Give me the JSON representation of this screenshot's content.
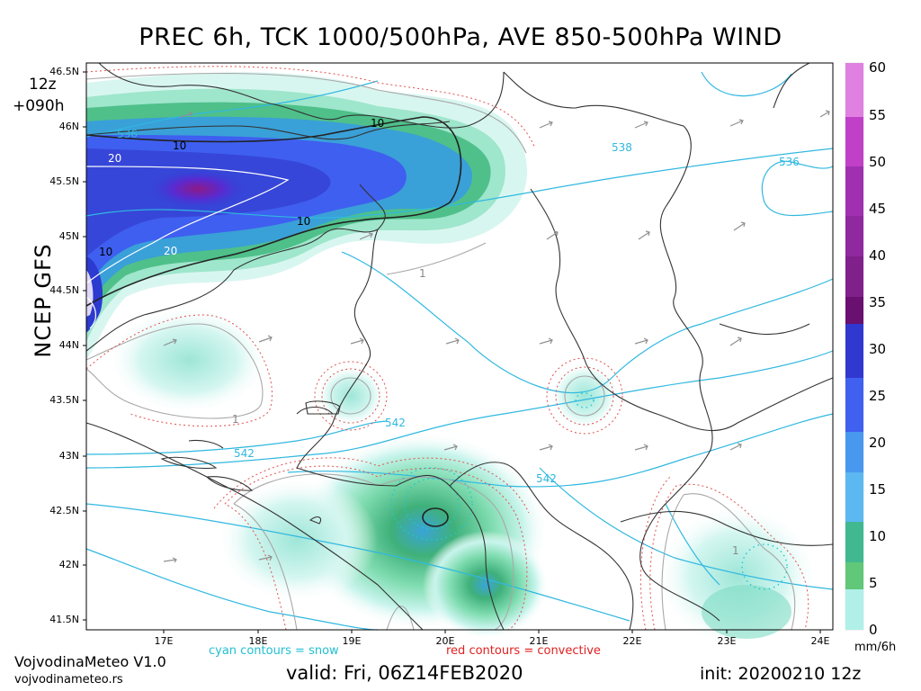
{
  "title": "PREC 6h, TCK 1000/500hPa, AVE 850-500hPa WIND",
  "side_label": "NCEP GFS",
  "run": {
    "hour": "12z",
    "step": "+090h"
  },
  "map": {
    "lat_labels": [
      "46.5N",
      "46N",
      "45.5N",
      "45N",
      "44.5N",
      "44N",
      "43.5N",
      "43N",
      "42.5N",
      "42N",
      "41.5N"
    ],
    "lon_labels": [
      "17E",
      "18E",
      "19E",
      "20E",
      "21E",
      "22E",
      "23E",
      "24E"
    ],
    "contour_labels": {
      "thickness": [
        "536",
        "538",
        "536",
        "542",
        "542",
        "542"
      ],
      "precip": [
        "10",
        "10",
        "10",
        "10",
        "20",
        "20",
        "1",
        "1",
        "1"
      ]
    }
  },
  "colorbar": {
    "ticks": [
      "60",
      "55",
      "50",
      "45",
      "40",
      "35",
      "30",
      "25",
      "20",
      "15",
      "10",
      "5",
      "0"
    ],
    "unit": "mm/6h",
    "colors": [
      "#e080e0",
      "#c040c8",
      "#a030b0",
      "#9028a0",
      "#80208a",
      "#6a1070",
      "#3038d0",
      "#4060f0",
      "#4898f0",
      "#5cb8f0",
      "#40b890",
      "#60c878",
      "#b0f0e8"
    ]
  },
  "legend": {
    "snow": "cyan contours = snow",
    "convective": "red contours = convective"
  },
  "footer": {
    "brand": "VojvodinaMeteo V1.0",
    "url": "vojvodinameteo.rs",
    "valid": "valid: Fri, 06Z14FEB2020",
    "init": "init: 20200210 12z"
  }
}
